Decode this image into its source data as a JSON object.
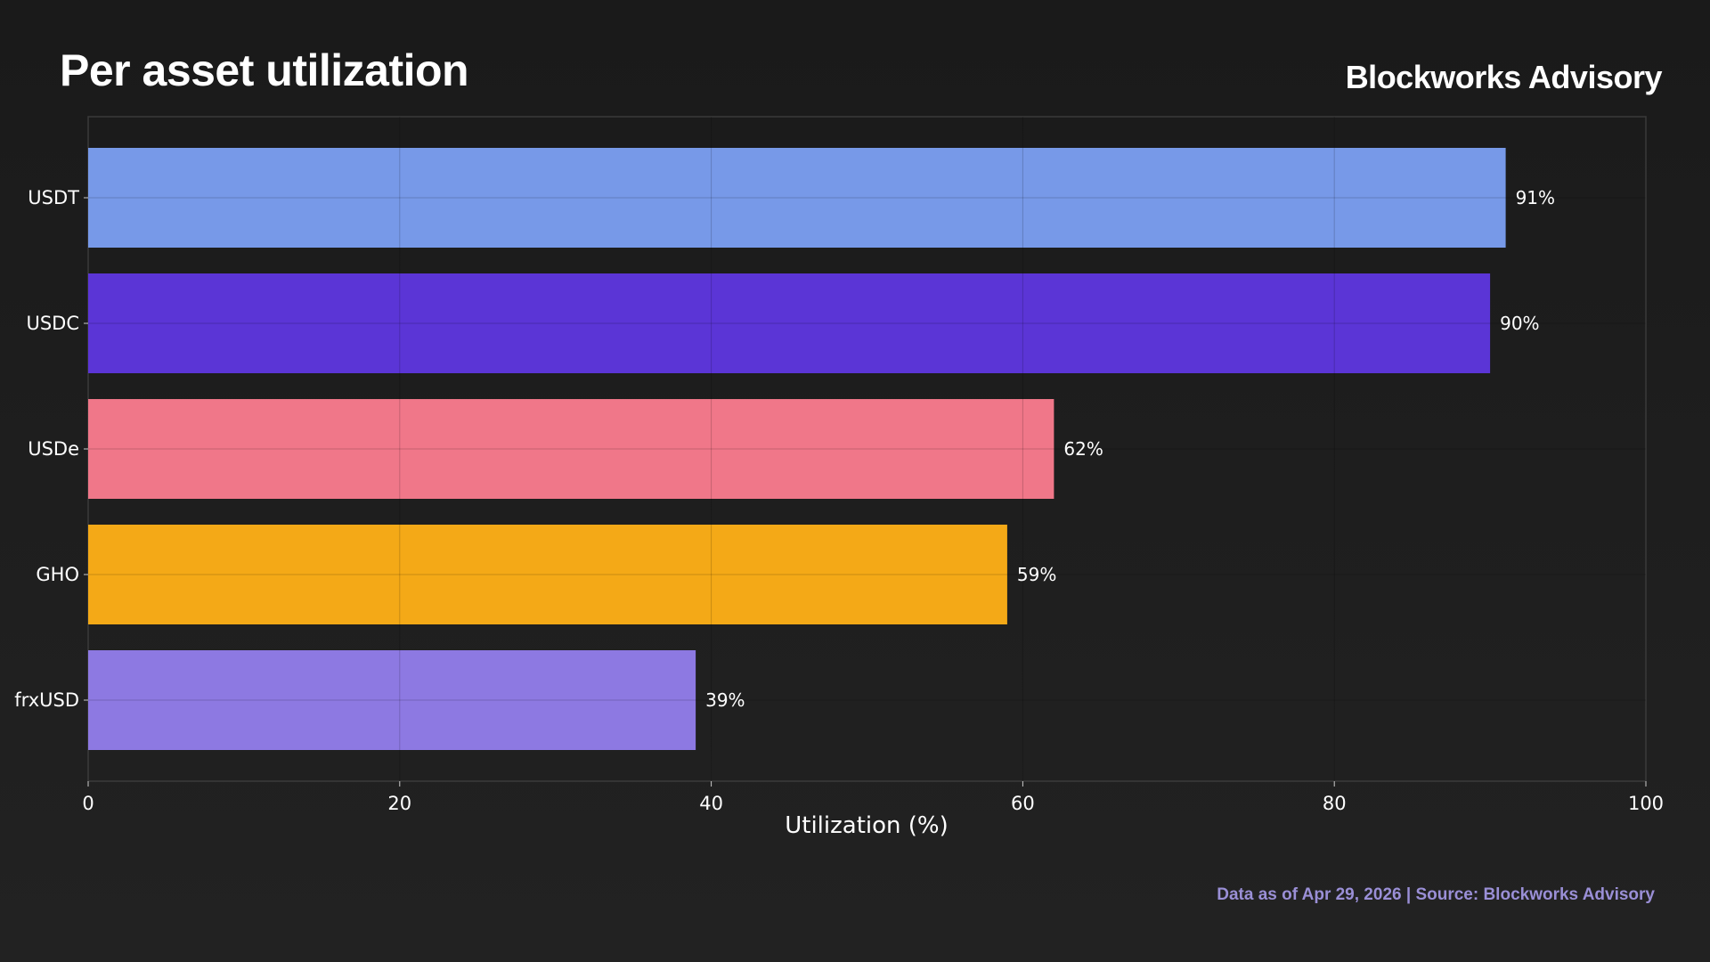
{
  "header": {
    "title": "Per asset utilization",
    "brand": "Blockworks Advisory"
  },
  "footer": {
    "source": "Data as of Apr 29, 2026 | Source: Blockworks Advisory"
  },
  "chart_data": {
    "type": "bar",
    "orientation": "horizontal",
    "title": "Per asset utilization",
    "xlabel": "Utilization (%)",
    "ylabel": "",
    "xlim": [
      0,
      100
    ],
    "xticks": [
      0,
      20,
      40,
      60,
      80,
      100
    ],
    "grid": true,
    "categories": [
      "USDT",
      "USDC",
      "USDe",
      "GHO",
      "frxUSD"
    ],
    "values": [
      91,
      90,
      62,
      59,
      39
    ],
    "value_labels": [
      "91%",
      "90%",
      "62%",
      "59%",
      "39%"
    ],
    "colors": [
      "#7799e8",
      "#5b35d6",
      "#f07789",
      "#f4a917",
      "#8d79e2"
    ]
  }
}
